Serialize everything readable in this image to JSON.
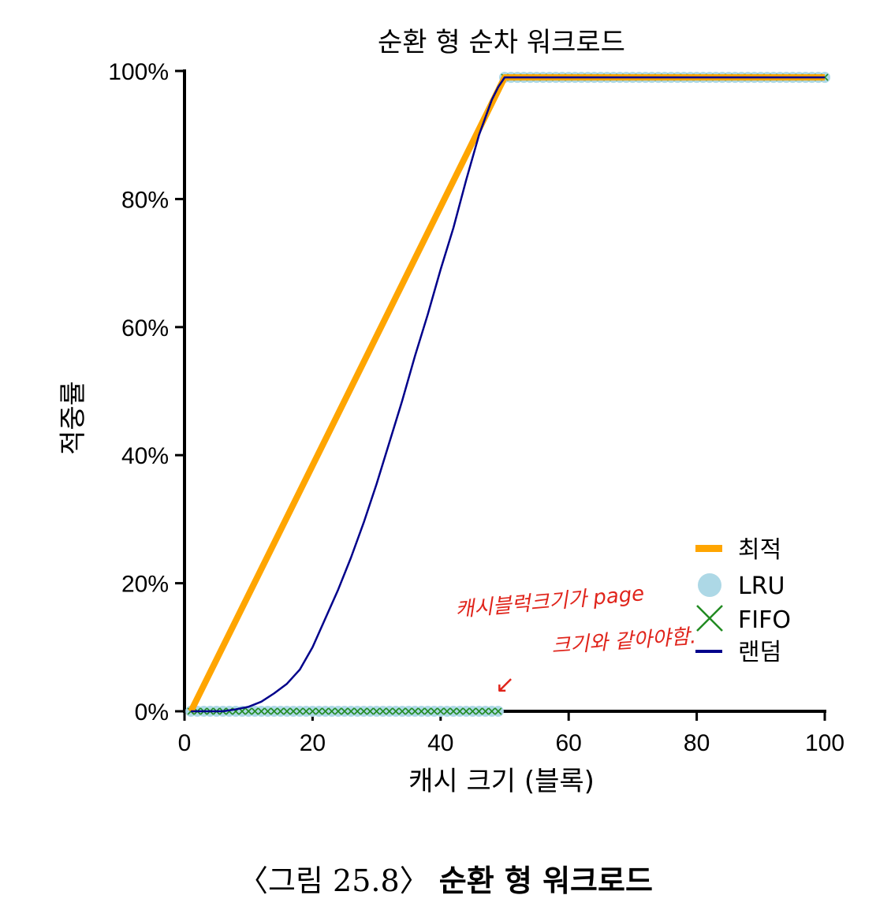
{
  "chart_data": {
    "type": "line",
    "title": "순환 형 순차 워크로드",
    "xlabel": "캐시 크기 (블록)",
    "ylabel": "적중률",
    "xlim": [
      0,
      100
    ],
    "ylim": [
      0,
      100
    ],
    "xticks": [
      "0",
      "20",
      "40",
      "60",
      "80",
      "100"
    ],
    "yticks": [
      "0%",
      "20%",
      "40%",
      "60%",
      "80%",
      "100%"
    ],
    "grid": false,
    "legend_position": "bottom-right",
    "series": [
      {
        "name": "최적",
        "color": "#FFA500",
        "style": "thick-line",
        "x": [
          1,
          50,
          100
        ],
        "y": [
          0,
          99,
          99
        ]
      },
      {
        "name": "LRU",
        "color": "#ADD8E6",
        "style": "circle-markers",
        "x_ranges": [
          [
            1,
            49,
            0
          ],
          [
            50,
            100,
            99
          ]
        ]
      },
      {
        "name": "FIFO",
        "color": "#228B22",
        "style": "x-markers",
        "x_ranges": [
          [
            1,
            49,
            0
          ],
          [
            50,
            100,
            99
          ]
        ]
      },
      {
        "name": "랜덤",
        "color": "#00008B",
        "style": "thin-line",
        "x": [
          1,
          6,
          8,
          10,
          12,
          14,
          16,
          18,
          20,
          22,
          24,
          26,
          28,
          30,
          32,
          34,
          36,
          38,
          40,
          42,
          44,
          46,
          48,
          49,
          50,
          60,
          80,
          100
        ],
        "y": [
          0,
          0,
          0.3,
          0.7,
          1.5,
          2.8,
          4.3,
          6.5,
          10,
          14.5,
          19,
          24,
          29.5,
          35.5,
          42,
          48.5,
          55.5,
          62,
          69,
          75.5,
          83,
          90,
          95.5,
          97.5,
          99,
          99,
          99,
          99
        ]
      }
    ],
    "annotations": [
      "캐시블럭크기가 page",
      "크기와 같아야함.",
      "↙"
    ]
  },
  "caption": {
    "number": "〈그림 25.8〉",
    "title": "순환 형 워크로드"
  }
}
